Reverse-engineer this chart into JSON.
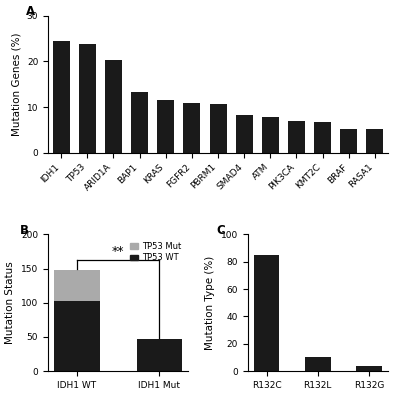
{
  "panel_A": {
    "categories": [
      "IDH1",
      "TP53",
      "ARID1A",
      "BAP1",
      "KRAS",
      "FGFR2",
      "PBRM1",
      "SMAD4",
      "ATM",
      "PIK3CA",
      "KMT2C",
      "BRAF",
      "RASA1"
    ],
    "values": [
      24.5,
      23.8,
      20.3,
      13.2,
      11.5,
      10.8,
      10.7,
      8.3,
      7.9,
      6.9,
      6.8,
      5.2,
      5.1
    ],
    "bar_color": "#1a1a1a",
    "ylabel": "Mutation Genes (%)",
    "ylim": [
      0,
      30
    ],
    "yticks": [
      0,
      10,
      20,
      30
    ]
  },
  "panel_B": {
    "categories": [
      "IDH1 WT",
      "IDH1 Mut"
    ],
    "wt_values": [
      103,
      47
    ],
    "mut_values": [
      45,
      0
    ],
    "wt_color": "#1a1a1a",
    "mut_color": "#aaaaaa",
    "ylabel": "Mutation Status",
    "ylim": [
      0,
      200
    ],
    "yticks": [
      0,
      50,
      100,
      150,
      200
    ],
    "legend_labels": [
      "TP53 Mut",
      "TP53 WT"
    ],
    "significance": "**"
  },
  "panel_C": {
    "categories": [
      "R132C",
      "R132L",
      "R132G"
    ],
    "values": [
      85,
      10,
      4
    ],
    "bar_color": "#1a1a1a",
    "ylabel": "Mutation Type (%)",
    "ylim": [
      0,
      100
    ],
    "yticks": [
      0,
      20,
      40,
      60,
      80,
      100
    ]
  },
  "label_fontsize": 7.5,
  "tick_fontsize": 6.5,
  "panel_label_fontsize": 8.5,
  "background_color": "#ffffff"
}
